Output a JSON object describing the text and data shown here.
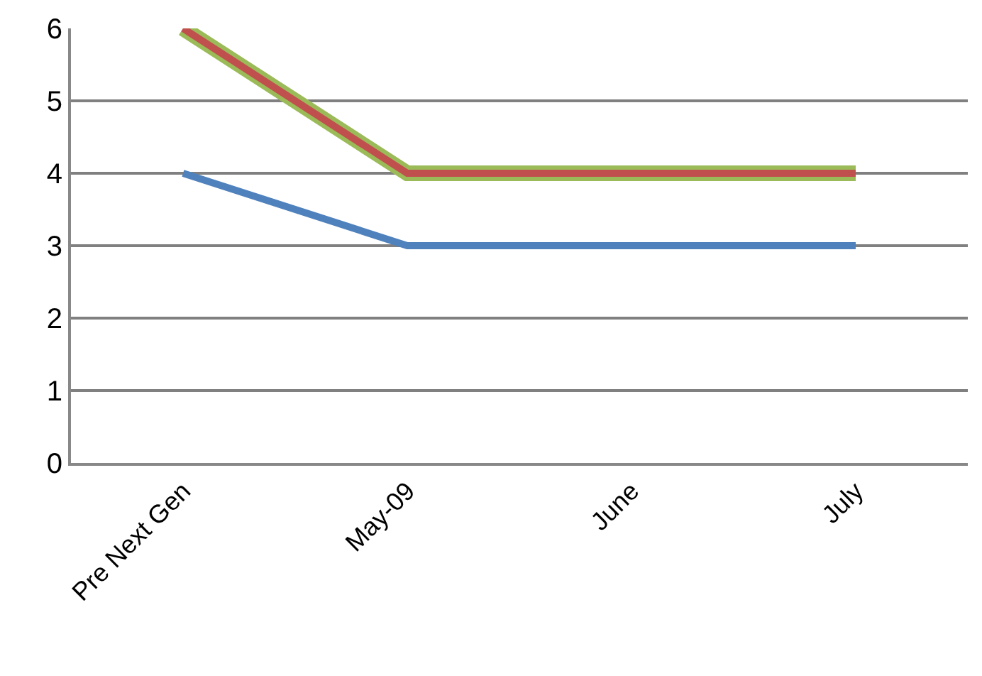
{
  "chart_data": {
    "type": "line",
    "categories": [
      "Pre Next Gen",
      "May-09",
      "June",
      "July"
    ],
    "series": [
      {
        "color": "#4f81bd",
        "values": [
          4,
          3,
          3,
          3
        ]
      },
      {
        "color": "#9bbb59",
        "values": [
          6,
          4,
          4,
          4
        ]
      },
      {
        "color": "#c0504d",
        "values": [
          6,
          4,
          4,
          4
        ]
      }
    ],
    "ylim": [
      0,
      6
    ],
    "yticks": [
      0,
      1,
      2,
      3,
      4,
      5,
      6
    ],
    "grid": "y",
    "marker": "none",
    "line_style": "solid"
  }
}
